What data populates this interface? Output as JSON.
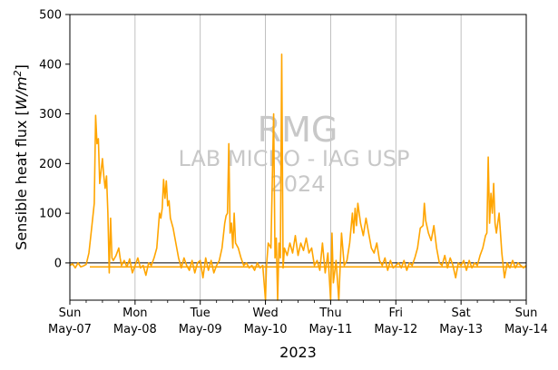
{
  "chart_data": {
    "type": "line",
    "xlabel": "2023",
    "ylabel": "Sensible heat flux [W/m²]",
    "ylabel_parts": {
      "text": "Sensible heat flux [",
      "unit_main": "W/m",
      "unit_sup": "2",
      "close": "]"
    },
    "ylim": [
      -75,
      500
    ],
    "yticks": [
      0,
      100,
      200,
      300,
      400,
      500
    ],
    "xlim_days": [
      0,
      7
    ],
    "x_ticks": [
      {
        "day": "Sun",
        "date": "May-07"
      },
      {
        "day": "Mon",
        "date": "May-08"
      },
      {
        "day": "Tue",
        "date": "May-09"
      },
      {
        "day": "Wed",
        "date": "May-10"
      },
      {
        "day": "Thu",
        "date": "May-11"
      },
      {
        "day": "Fri",
        "date": "May-12"
      },
      {
        "day": "Sat",
        "date": "May-13"
      },
      {
        "day": "Sun",
        "date": "May-14"
      }
    ],
    "grid": "vertical",
    "zero_line": true,
    "watermark": [
      "RMG",
      "LAB MICRO - IAG USP",
      "2024"
    ],
    "series": [
      {
        "color": "#ffa500",
        "baseline": -8,
        "points": [
          [
            "2023-05-07 00:00",
            -5
          ],
          [
            "2023-05-07 01:00",
            -2
          ],
          [
            "2023-05-07 02:00",
            -10
          ],
          [
            "2023-05-07 03:00",
            0
          ],
          [
            "2023-05-07 04:00",
            -8
          ],
          [
            "2023-05-07 05:00",
            -6
          ],
          [
            "2023-05-07 06:00",
            -3
          ],
          [
            "2023-05-07 07:00",
            20
          ],
          [
            "2023-05-07 08:00",
            70
          ],
          [
            "2023-05-07 09:00",
            120
          ],
          [
            "2023-05-07 09:30",
            297
          ],
          [
            "2023-05-07 10:00",
            240
          ],
          [
            "2023-05-07 10:30",
            250
          ],
          [
            "2023-05-07 11:00",
            160
          ],
          [
            "2023-05-07 12:00",
            210
          ],
          [
            "2023-05-07 12:30",
            175
          ],
          [
            "2023-05-07 13:00",
            150
          ],
          [
            "2023-05-07 13:30",
            175
          ],
          [
            "2023-05-07 14:00",
            100
          ],
          [
            "2023-05-07 14:30",
            -20
          ],
          [
            "2023-05-07 15:00",
            90
          ],
          [
            "2023-05-07 15:30",
            10
          ],
          [
            "2023-05-07 16:00",
            5
          ],
          [
            "2023-05-07 17:00",
            15
          ],
          [
            "2023-05-07 18:00",
            30
          ],
          [
            "2023-05-07 18:30",
            10
          ],
          [
            "2023-05-07 19:00",
            -5
          ],
          [
            "2023-05-07 20:00",
            5
          ],
          [
            "2023-05-07 21:00",
            -8
          ],
          [
            "2023-05-07 22:00",
            8
          ],
          [
            "2023-05-07 23:00",
            -20
          ],
          [
            "2023-05-08 00:00",
            -5
          ],
          [
            "2023-05-08 01:00",
            10
          ],
          [
            "2023-05-08 02:00",
            -10
          ],
          [
            "2023-05-08 03:00",
            -5
          ],
          [
            "2023-05-08 04:00",
            -25
          ],
          [
            "2023-05-08 05:00",
            0
          ],
          [
            "2023-05-08 06:00",
            -5
          ],
          [
            "2023-05-08 07:00",
            10
          ],
          [
            "2023-05-08 08:00",
            30
          ],
          [
            "2023-05-08 09:00",
            100
          ],
          [
            "2023-05-08 09:30",
            90
          ],
          [
            "2023-05-08 10:00",
            110
          ],
          [
            "2023-05-08 10:30",
            168
          ],
          [
            "2023-05-08 11:00",
            130
          ],
          [
            "2023-05-08 11:30",
            165
          ],
          [
            "2023-05-08 12:00",
            115
          ],
          [
            "2023-05-08 12:30",
            125
          ],
          [
            "2023-05-08 13:00",
            90
          ],
          [
            "2023-05-08 14:00",
            70
          ],
          [
            "2023-05-08 15:00",
            40
          ],
          [
            "2023-05-08 16:00",
            10
          ],
          [
            "2023-05-08 17:00",
            -10
          ],
          [
            "2023-05-08 18:00",
            10
          ],
          [
            "2023-05-08 19:00",
            -5
          ],
          [
            "2023-05-08 20:00",
            -15
          ],
          [
            "2023-05-08 21:00",
            5
          ],
          [
            "2023-05-08 22:00",
            -20
          ],
          [
            "2023-05-08 23:00",
            0
          ],
          [
            "2023-05-09 00:00",
            5
          ],
          [
            "2023-05-09 01:00",
            -30
          ],
          [
            "2023-05-09 02:00",
            10
          ],
          [
            "2023-05-09 03:00",
            -15
          ],
          [
            "2023-05-09 04:00",
            5
          ],
          [
            "2023-05-09 05:00",
            -20
          ],
          [
            "2023-05-09 06:00",
            -5
          ],
          [
            "2023-05-09 07:00",
            5
          ],
          [
            "2023-05-09 08:00",
            30
          ],
          [
            "2023-05-09 09:00",
            80
          ],
          [
            "2023-05-09 09:30",
            95
          ],
          [
            "2023-05-09 10:00",
            100
          ],
          [
            "2023-05-09 10:30",
            240
          ],
          [
            "2023-05-09 11:00",
            60
          ],
          [
            "2023-05-09 11:30",
            80
          ],
          [
            "2023-05-09 12:00",
            30
          ],
          [
            "2023-05-09 12:30",
            100
          ],
          [
            "2023-05-09 13:00",
            40
          ],
          [
            "2023-05-09 14:00",
            30
          ],
          [
            "2023-05-09 15:00",
            10
          ],
          [
            "2023-05-09 16:00",
            -5
          ],
          [
            "2023-05-09 17:00",
            0
          ],
          [
            "2023-05-09 18:00",
            -10
          ],
          [
            "2023-05-09 19:00",
            -5
          ],
          [
            "2023-05-09 20:00",
            -15
          ],
          [
            "2023-05-09 21:00",
            0
          ],
          [
            "2023-05-09 22:00",
            -10
          ],
          [
            "2023-05-09 23:00",
            -5
          ],
          [
            "2023-05-10 00:00",
            -75
          ],
          [
            "2023-05-10 00:20",
            -10
          ],
          [
            "2023-05-10 01:00",
            40
          ],
          [
            "2023-05-10 02:00",
            30
          ],
          [
            "2023-05-10 03:00",
            300
          ],
          [
            "2023-05-10 03:30",
            10
          ],
          [
            "2023-05-10 04:00",
            50
          ],
          [
            "2023-05-10 04:30",
            -75
          ],
          [
            "2023-05-10 05:00",
            40
          ],
          [
            "2023-05-10 05:30",
            10
          ],
          [
            "2023-05-10 06:00",
            420
          ],
          [
            "2023-05-10 06:30",
            -10
          ],
          [
            "2023-05-10 07:00",
            30
          ],
          [
            "2023-05-10 08:00",
            15
          ],
          [
            "2023-05-10 09:00",
            40
          ],
          [
            "2023-05-10 10:00",
            20
          ],
          [
            "2023-05-10 11:00",
            55
          ],
          [
            "2023-05-10 12:00",
            15
          ],
          [
            "2023-05-10 13:00",
            40
          ],
          [
            "2023-05-10 14:00",
            25
          ],
          [
            "2023-05-10 15:00",
            50
          ],
          [
            "2023-05-10 16:00",
            20
          ],
          [
            "2023-05-10 17:00",
            30
          ],
          [
            "2023-05-10 18:00",
            -5
          ],
          [
            "2023-05-10 19:00",
            5
          ],
          [
            "2023-05-10 20:00",
            -15
          ],
          [
            "2023-05-10 21:00",
            40
          ],
          [
            "2023-05-10 22:00",
            -20
          ],
          [
            "2023-05-10 23:00",
            20
          ],
          [
            "2023-05-11 00:00",
            -75
          ],
          [
            "2023-05-11 00:30",
            60
          ],
          [
            "2023-05-11 01:00",
            -40
          ],
          [
            "2023-05-11 02:00",
            5
          ],
          [
            "2023-05-11 03:00",
            -75
          ],
          [
            "2023-05-11 04:00",
            60
          ],
          [
            "2023-05-11 05:00",
            -5
          ],
          [
            "2023-05-11 06:00",
            5
          ],
          [
            "2023-05-11 07:00",
            40
          ],
          [
            "2023-05-11 08:00",
            100
          ],
          [
            "2023-05-11 08:30",
            60
          ],
          [
            "2023-05-11 09:00",
            110
          ],
          [
            "2023-05-11 09:30",
            75
          ],
          [
            "2023-05-11 10:00",
            120
          ],
          [
            "2023-05-11 11:00",
            80
          ],
          [
            "2023-05-11 12:00",
            55
          ],
          [
            "2023-05-11 13:00",
            90
          ],
          [
            "2023-05-11 14:00",
            60
          ],
          [
            "2023-05-11 15:00",
            30
          ],
          [
            "2023-05-11 16:00",
            20
          ],
          [
            "2023-05-11 17:00",
            40
          ],
          [
            "2023-05-11 18:00",
            5
          ],
          [
            "2023-05-11 19:00",
            -5
          ],
          [
            "2023-05-11 20:00",
            10
          ],
          [
            "2023-05-11 21:00",
            -15
          ],
          [
            "2023-05-11 22:00",
            5
          ],
          [
            "2023-05-11 23:00",
            -10
          ],
          [
            "2023-05-12 00:00",
            -5
          ],
          [
            "2023-05-12 01:00",
            0
          ],
          [
            "2023-05-12 02:00",
            -10
          ],
          [
            "2023-05-12 03:00",
            5
          ],
          [
            "2023-05-12 04:00",
            -15
          ],
          [
            "2023-05-12 05:00",
            0
          ],
          [
            "2023-05-12 06:00",
            -5
          ],
          [
            "2023-05-12 07:00",
            10
          ],
          [
            "2023-05-12 08:00",
            30
          ],
          [
            "2023-05-12 09:00",
            70
          ],
          [
            "2023-05-12 10:00",
            75
          ],
          [
            "2023-05-12 10:30",
            120
          ],
          [
            "2023-05-12 11:00",
            85
          ],
          [
            "2023-05-12 12:00",
            60
          ],
          [
            "2023-05-12 13:00",
            45
          ],
          [
            "2023-05-12 14:00",
            75
          ],
          [
            "2023-05-12 15:00",
            30
          ],
          [
            "2023-05-12 16:00",
            0
          ],
          [
            "2023-05-12 17:00",
            -5
          ],
          [
            "2023-05-12 18:00",
            15
          ],
          [
            "2023-05-12 19:00",
            -10
          ],
          [
            "2023-05-12 20:00",
            10
          ],
          [
            "2023-05-12 21:00",
            -5
          ],
          [
            "2023-05-12 22:00",
            -30
          ],
          [
            "2023-05-12 23:00",
            0
          ],
          [
            "2023-05-13 00:00",
            -5
          ],
          [
            "2023-05-13 01:00",
            5
          ],
          [
            "2023-05-13 02:00",
            -15
          ],
          [
            "2023-05-13 03:00",
            5
          ],
          [
            "2023-05-13 04:00",
            -10
          ],
          [
            "2023-05-13 05:00",
            0
          ],
          [
            "2023-05-13 06:00",
            -5
          ],
          [
            "2023-05-13 07:00",
            15
          ],
          [
            "2023-05-13 08:00",
            30
          ],
          [
            "2023-05-13 09:00",
            55
          ],
          [
            "2023-05-13 09:30",
            60
          ],
          [
            "2023-05-13 10:00",
            213
          ],
          [
            "2023-05-13 10:30",
            80
          ],
          [
            "2023-05-13 11:00",
            140
          ],
          [
            "2023-05-13 11:30",
            100
          ],
          [
            "2023-05-13 12:00",
            160
          ],
          [
            "2023-05-13 12:30",
            80
          ],
          [
            "2023-05-13 13:00",
            60
          ],
          [
            "2023-05-13 14:00",
            100
          ],
          [
            "2023-05-13 15:00",
            20
          ],
          [
            "2023-05-13 16:00",
            -30
          ],
          [
            "2023-05-13 17:00",
            0
          ],
          [
            "2023-05-13 18:00",
            -10
          ],
          [
            "2023-05-13 19:00",
            5
          ],
          [
            "2023-05-13 20:00",
            -10
          ],
          [
            "2023-05-13 21:00",
            0
          ],
          [
            "2023-05-13 22:00",
            -5
          ],
          [
            "2023-05-13 23:00",
            -10
          ],
          [
            "2023-05-14 00:00",
            -5
          ]
        ]
      }
    ]
  }
}
